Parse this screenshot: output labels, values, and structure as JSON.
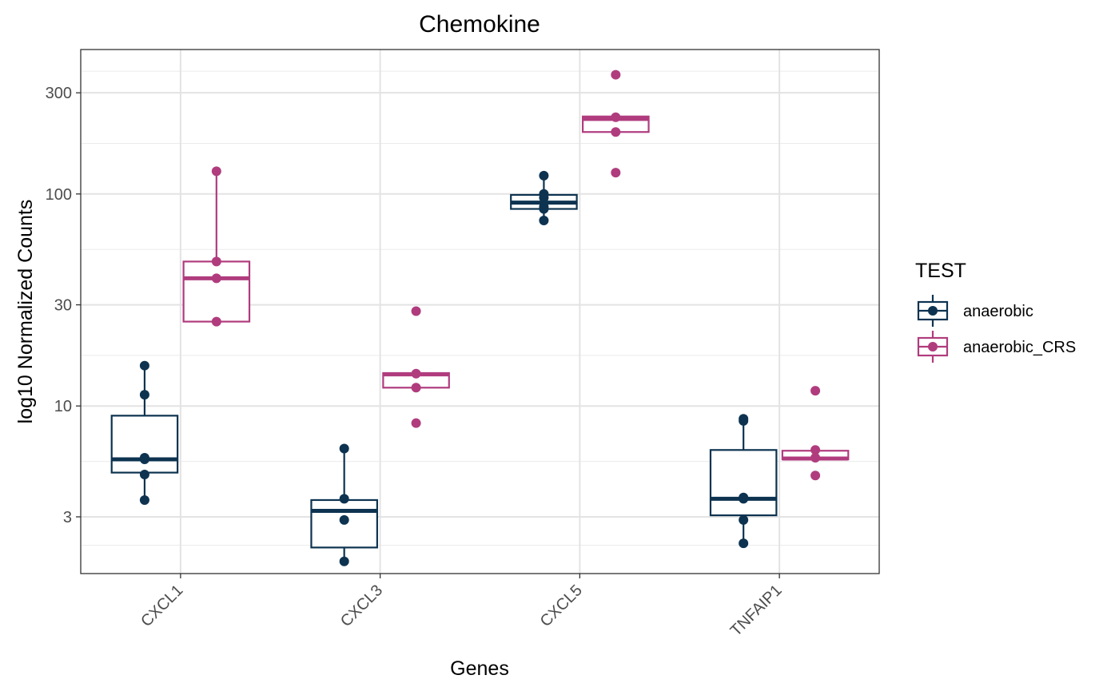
{
  "chart_data": {
    "type": "boxplot",
    "title": "Chemokine",
    "xlabel": "Genes",
    "ylabel": "log10 Normalized Counts",
    "y_scale": "log10",
    "ylim": [
      1.62,
      480
    ],
    "y_ticks": [
      3,
      10,
      30,
      100,
      300
    ],
    "grid": true,
    "categories": [
      "CXCL1",
      "CXCL3",
      "CXCL5",
      "TNFAIP1"
    ],
    "legend": {
      "title": "TEST",
      "position": "right",
      "entries": [
        "anaerobic",
        "anaerobic_CRS"
      ]
    },
    "series": [
      {
        "name": "anaerobic",
        "color": "#0d3350",
        "boxes": [
          {
            "min": 3.6,
            "q1": 4.85,
            "median": 5.6,
            "q3": 9.0,
            "max": 15.5,
            "points": [
              15.5,
              11.3,
              5.7,
              5.6,
              4.75,
              3.6
            ]
          },
          {
            "min": 1.9,
            "q1": 2.15,
            "median": 3.2,
            "q3": 3.6,
            "max": 6.3,
            "points": [
              6.3,
              3.65,
              2.9,
              1.85
            ]
          },
          {
            "min": 75,
            "q1": 85,
            "median": 91,
            "q3": 99,
            "max": 122,
            "points": [
              122,
              100,
              96,
              87,
              85,
              75
            ]
          },
          {
            "min": 2.3,
            "q1": 3.05,
            "median": 3.65,
            "q3": 6.2,
            "max": 8.7,
            "points": [
              8.7,
              8.5,
              3.7,
              3.65,
              2.9,
              2.25
            ]
          }
        ]
      },
      {
        "name": "anaerobic_CRS",
        "color": "#b03c7e",
        "boxes": [
          {
            "min": 25,
            "q1": 25,
            "median": 40,
            "q3": 48,
            "max": 128,
            "points": [
              128,
              48,
              40,
              25
            ]
          },
          {
            "min": 12.2,
            "q1": 12.2,
            "median": 14.1,
            "q3": 14.3,
            "max": 14.3,
            "points": [
              28,
              14.2,
              12.2,
              8.3
            ]
          },
          {
            "min": 196,
            "q1": 196,
            "median": 226,
            "q3": 232,
            "max": 232,
            "points": [
              365,
              230,
              196,
              126
            ]
          },
          {
            "min": 5.6,
            "q1": 5.6,
            "median": 5.65,
            "q3": 6.15,
            "max": 6.2,
            "points": [
              11.8,
              6.2,
              5.7,
              4.7
            ]
          }
        ]
      }
    ]
  }
}
